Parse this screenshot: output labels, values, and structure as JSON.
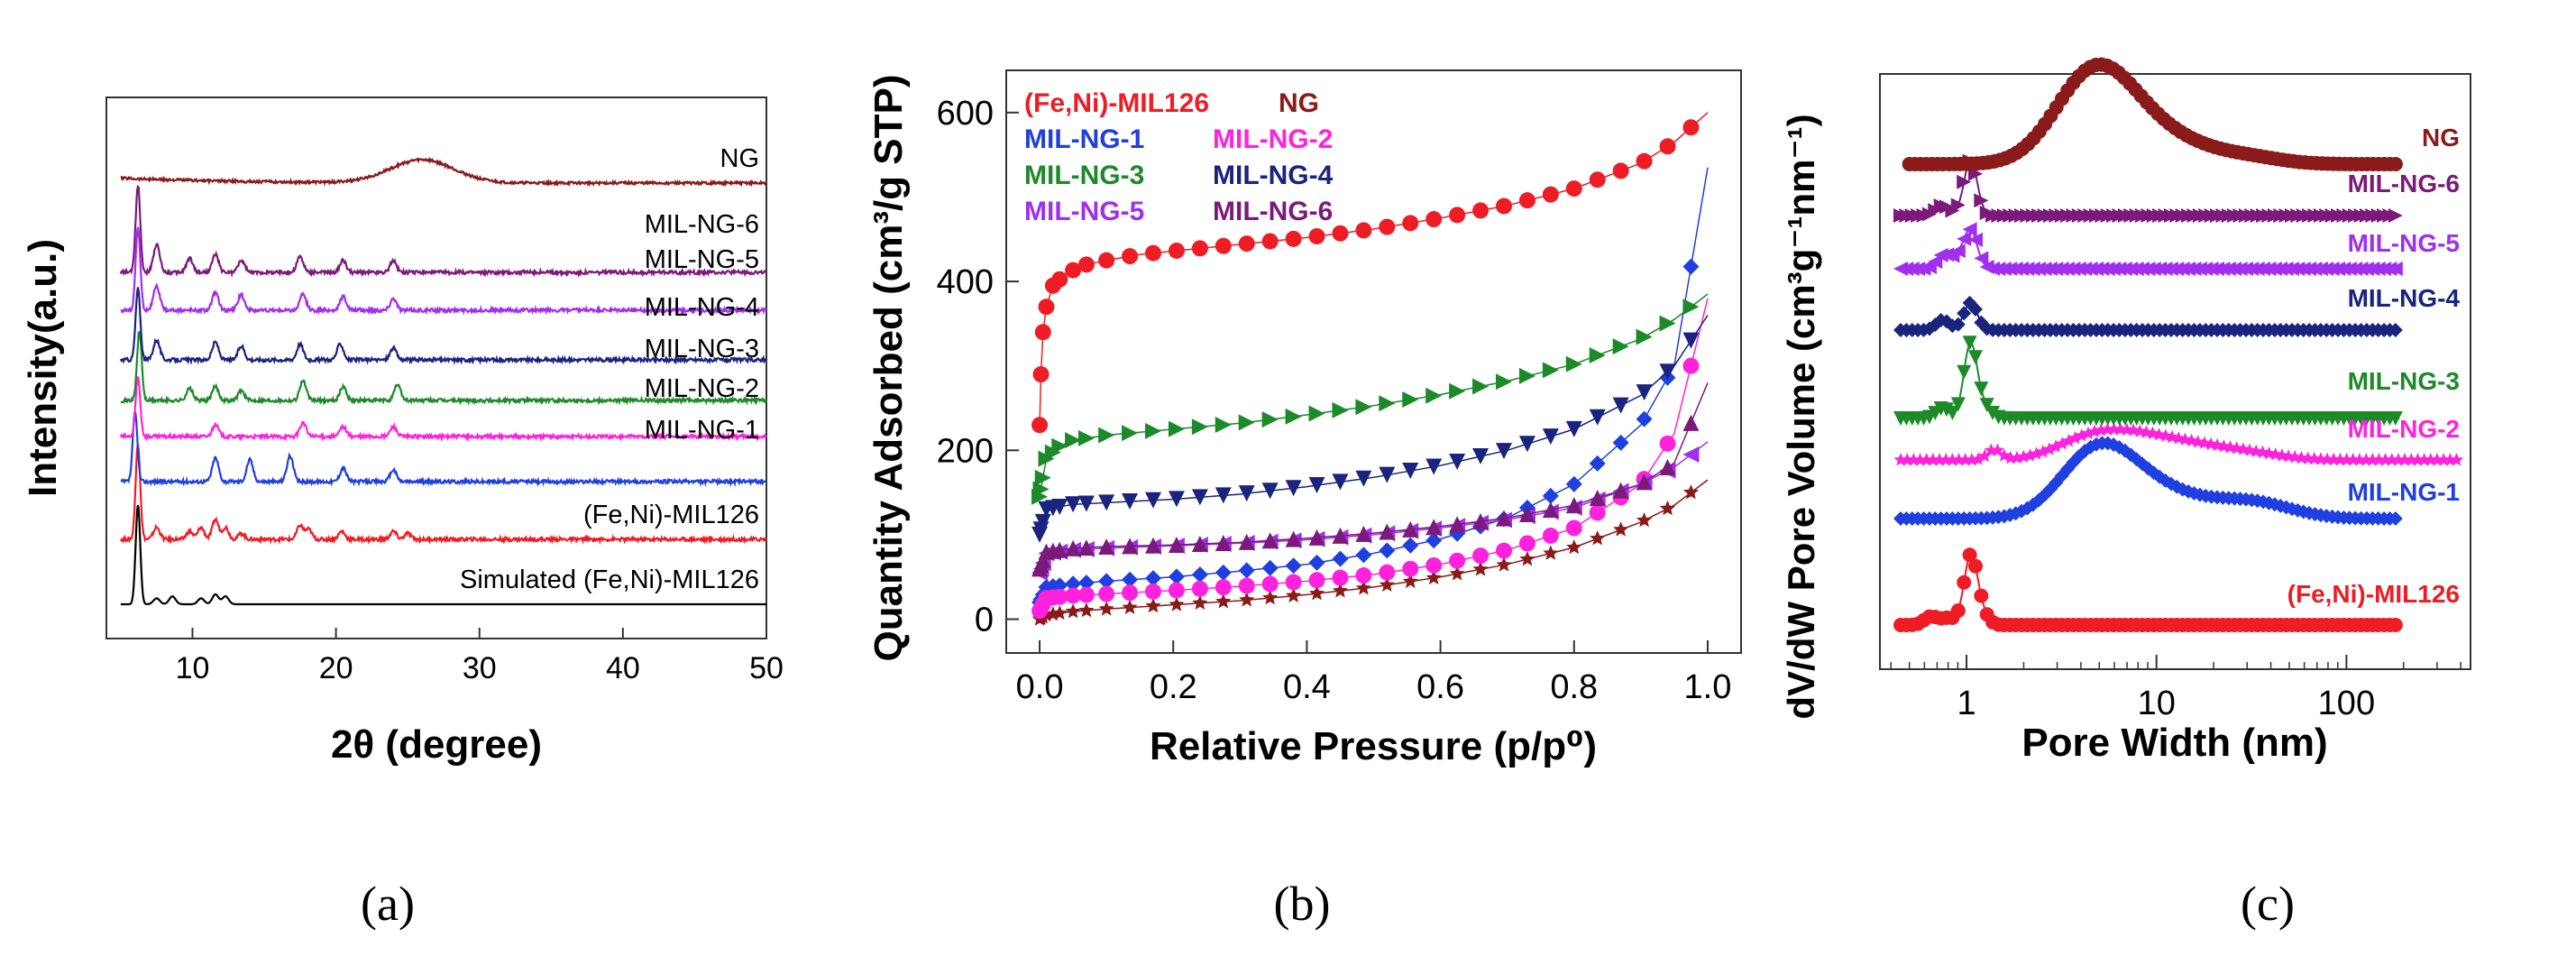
{
  "chart_data": [
    {
      "type": "line",
      "panel_label": "(a)",
      "xlabel": "2θ (degree)",
      "ylabel": "Intensity(a.u.)",
      "xlim": [
        4,
        50
      ],
      "xticks": [
        10,
        20,
        30,
        40,
        50
      ],
      "series": [
        {
          "name": "Simulated (Fe,Ni)-MIL126",
          "color": "#000000",
          "peaks": [
            [
              6.2,
              5.0
            ],
            [
              7.5,
              0.3
            ],
            [
              8.6,
              0.4
            ],
            [
              10.6,
              0.3
            ],
            [
              11.6,
              0.5
            ],
            [
              12.3,
              0.4
            ]
          ]
        },
        {
          "name": "(Fe,Ni)-MIL126",
          "color": "#ee1c25",
          "peaks": [
            [
              6.2,
              4.8
            ],
            [
              7.5,
              0.6
            ],
            [
              9.8,
              0.4
            ],
            [
              10.6,
              0.6
            ],
            [
              11.6,
              1.0
            ],
            [
              12.3,
              0.6
            ],
            [
              13.4,
              0.3
            ],
            [
              17.5,
              0.7
            ],
            [
              18.1,
              0.5
            ],
            [
              20.4,
              0.4
            ],
            [
              24.0,
              0.4
            ],
            [
              25.0,
              0.3
            ]
          ]
        },
        {
          "name": "MIL-NG-1",
          "color": "#1f3fe0",
          "peaks": [
            [
              6.0,
              3.5
            ],
            [
              11.6,
              1.2
            ],
            [
              14.0,
              1.1
            ],
            [
              16.8,
              1.3
            ],
            [
              20.5,
              0.7
            ],
            [
              24.0,
              0.6
            ]
          ]
        },
        {
          "name": "MIL-NG-2",
          "color": "#ff22dd",
          "peaks": [
            [
              6.2,
              3.0
            ],
            [
              11.6,
              0.6
            ],
            [
              17.7,
              0.7
            ],
            [
              20.5,
              0.5
            ],
            [
              24.0,
              0.5
            ]
          ]
        },
        {
          "name": "MIL-NG-3",
          "color": "#1d8a2a",
          "peaks": [
            [
              6.3,
              3.5
            ],
            [
              9.8,
              0.6
            ],
            [
              11.6,
              0.7
            ],
            [
              13.4,
              0.5
            ],
            [
              17.7,
              1.0
            ],
            [
              20.5,
              0.7
            ],
            [
              24.3,
              0.8
            ]
          ]
        },
        {
          "name": "MIL-NG-4",
          "color": "#1a237e",
          "peaks": [
            [
              6.2,
              3.6
            ],
            [
              7.5,
              1.0
            ],
            [
              11.6,
              0.9
            ],
            [
              13.4,
              0.7
            ],
            [
              17.5,
              0.8
            ],
            [
              20.3,
              0.8
            ],
            [
              24.0,
              0.6
            ]
          ]
        },
        {
          "name": "MIL-NG-5",
          "color": "#a030ee",
          "peaks": [
            [
              6.2,
              4.2
            ],
            [
              7.5,
              1.2
            ],
            [
              11.6,
              0.9
            ],
            [
              13.4,
              0.8
            ],
            [
              17.7,
              0.8
            ],
            [
              20.5,
              0.7
            ],
            [
              24.0,
              0.6
            ]
          ]
        },
        {
          "name": "MIL-NG-6",
          "color": "#7b1a7b",
          "peaks": [
            [
              6.2,
              4.4
            ],
            [
              7.5,
              1.4
            ],
            [
              9.8,
              0.7
            ],
            [
              11.6,
              0.9
            ],
            [
              13.4,
              0.6
            ],
            [
              17.5,
              0.8
            ],
            [
              20.5,
              0.6
            ],
            [
              24.0,
              0.6
            ]
          ]
        },
        {
          "name": "NG",
          "color": "#8b1a1a",
          "peaks": [
            [
              26.0,
              1.6
            ]
          ]
        }
      ]
    },
    {
      "type": "scatter",
      "panel_label": "(b)",
      "xlabel": "Relative Pressure (p/p⁰)",
      "ylabel": "Quantity Adsorbed (cm³/g STP)",
      "xlim": [
        -0.05,
        1.05
      ],
      "ylim": [
        -40,
        650
      ],
      "xticks": [
        0.0,
        0.2,
        0.4,
        0.6,
        0.8,
        1.0
      ],
      "xtick_labels": [
        "0.0",
        "0.2",
        "0.4",
        "0.6",
        "0.8",
        "1.0"
      ],
      "yticks": [
        0,
        200,
        400,
        600
      ],
      "legend": [
        {
          "label": "(Fe,Ni)-MIL126",
          "color": "#ee1c25"
        },
        {
          "label": "NG",
          "color": "#8b1a1a"
        },
        {
          "label": "MIL-NG-1",
          "color": "#1f3fe0"
        },
        {
          "label": "MIL-NG-2",
          "color": "#ff22dd"
        },
        {
          "label": "MIL-NG-3",
          "color": "#1d8a2a"
        },
        {
          "label": "MIL-NG-4",
          "color": "#1a237e"
        },
        {
          "label": "MIL-NG-5",
          "color": "#a030ee"
        },
        {
          "label": "MIL-NG-6",
          "color": "#7b1a7b"
        }
      ],
      "series": [
        {
          "name": "(Fe,Ni)-MIL126",
          "color": "#ee1c25",
          "marker": "circle",
          "x": [
            0.0,
            0.002,
            0.005,
            0.01,
            0.02,
            0.04,
            0.07,
            0.1,
            0.15,
            0.2,
            0.3,
            0.4,
            0.5,
            0.6,
            0.7,
            0.8,
            0.9,
            0.95,
            1.0
          ],
          "y": [
            230,
            290,
            340,
            370,
            395,
            410,
            420,
            425,
            432,
            436,
            444,
            452,
            462,
            475,
            490,
            510,
            540,
            565,
            600
          ]
        },
        {
          "name": "NG",
          "color": "#8b1a1a",
          "marker": "star",
          "x": [
            0.0,
            0.01,
            0.05,
            0.1,
            0.2,
            0.3,
            0.4,
            0.5,
            0.6,
            0.7,
            0.8,
            0.9,
            0.95,
            1.0
          ],
          "y": [
            0,
            5,
            9,
            12,
            17,
            22,
            29,
            38,
            50,
            65,
            85,
            115,
            135,
            165
          ]
        },
        {
          "name": "MIL-NG-1",
          "color": "#1f3fe0",
          "marker": "diamond",
          "x": [
            0.0,
            0.01,
            0.05,
            0.1,
            0.2,
            0.3,
            0.4,
            0.5,
            0.6,
            0.7,
            0.8,
            0.9,
            0.95,
            1.0
          ],
          "y": [
            20,
            38,
            42,
            45,
            50,
            57,
            65,
            78,
            95,
            120,
            160,
            230,
            300,
            535
          ]
        },
        {
          "name": "MIL-NG-2",
          "color": "#ff22dd",
          "marker": "circle",
          "x": [
            0.0,
            0.01,
            0.05,
            0.1,
            0.2,
            0.3,
            0.4,
            0.5,
            0.6,
            0.7,
            0.8,
            0.9,
            0.95,
            1.0
          ],
          "y": [
            10,
            25,
            28,
            30,
            34,
            39,
            45,
            53,
            65,
            82,
            108,
            160,
            220,
            380
          ]
        },
        {
          "name": "MIL-NG-3",
          "color": "#1d8a2a",
          "marker": "triangle-right",
          "x": [
            0.0,
            0.01,
            0.03,
            0.05,
            0.1,
            0.2,
            0.3,
            0.4,
            0.5,
            0.6,
            0.7,
            0.8,
            0.9,
            0.95,
            1.0
          ],
          "y": [
            145,
            190,
            205,
            212,
            218,
            225,
            232,
            242,
            253,
            266,
            282,
            302,
            332,
            355,
            385
          ]
        },
        {
          "name": "MIL-NG-4",
          "color": "#1a237e",
          "marker": "triangle-down",
          "x": [
            0.0,
            0.01,
            0.05,
            0.1,
            0.2,
            0.3,
            0.4,
            0.5,
            0.6,
            0.7,
            0.8,
            0.9,
            0.95,
            1.0
          ],
          "y": [
            100,
            130,
            136,
            138,
            142,
            148,
            157,
            168,
            182,
            200,
            225,
            265,
            300,
            360
          ]
        },
        {
          "name": "MIL-NG-5",
          "color": "#a030ee",
          "marker": "triangle-left",
          "x": [
            0.0,
            0.01,
            0.05,
            0.1,
            0.2,
            0.3,
            0.4,
            0.5,
            0.6,
            0.7,
            0.8,
            0.9,
            0.95,
            1.0
          ],
          "y": [
            55,
            78,
            82,
            84,
            87,
            90,
            94,
            100,
            108,
            118,
            132,
            160,
            180,
            210
          ]
        },
        {
          "name": "MIL-NG-6",
          "color": "#7b1a7b",
          "marker": "triangle-up",
          "x": [
            0.0,
            0.01,
            0.05,
            0.1,
            0.2,
            0.3,
            0.4,
            0.5,
            0.6,
            0.7,
            0.8,
            0.9,
            0.95,
            1.0
          ],
          "y": [
            60,
            80,
            84,
            86,
            88,
            91,
            96,
            102,
            110,
            120,
            135,
            160,
            185,
            280
          ]
        }
      ]
    },
    {
      "type": "line",
      "panel_label": "(c)",
      "xlabel": "Pore Width (nm)",
      "ylabel": "dV/dW Pore Volume (cm³g⁻¹nm⁻¹)",
      "xscale": "log",
      "xlim": [
        0.35,
        450
      ],
      "xticks": [
        1,
        10,
        100
      ],
      "xtick_labels": [
        "1",
        "10",
        "100"
      ],
      "series": [
        {
          "name": "(Fe,Ni)-MIL126",
          "color": "#ee1c25",
          "marker": "circle",
          "xmin": 0.45,
          "xmax": 190,
          "peaks": [
            [
              0.65,
              0.25
            ],
            [
              0.8,
              0.2
            ],
            [
              1.05,
              2.0
            ],
            [
              1.2,
              0.3
            ]
          ]
        },
        {
          "name": "MIL-NG-1",
          "color": "#1f3fe0",
          "marker": "diamond",
          "xmin": 0.45,
          "xmax": 190,
          "peaks": [
            [
              4.2,
              0.8
            ],
            [
              5.0,
              0.9
            ],
            [
              7.0,
              0.7
            ],
            [
              12.0,
              0.5
            ],
            [
              25.0,
              0.35
            ],
            [
              40.0,
              0.25
            ]
          ]
        },
        {
          "name": "MIL-NG-2",
          "color": "#ff22dd",
          "marker": "star",
          "xmin": 0.45,
          "xmax": 400,
          "peaks": [
            [
              1.4,
              0.3
            ],
            [
              4.5,
              0.6
            ],
            [
              8.0,
              0.5
            ],
            [
              15.0,
              0.35
            ],
            [
              30.0,
              0.2
            ]
          ]
        },
        {
          "name": "MIL-NG-3",
          "color": "#1d8a2a",
          "marker": "triangle-down",
          "xmin": 0.45,
          "xmax": 190,
          "peaks": [
            [
              0.75,
              0.3
            ],
            [
              1.05,
              2.2
            ],
            [
              1.25,
              0.3
            ]
          ]
        },
        {
          "name": "MIL-NG-4",
          "color": "#1a237e",
          "marker": "diamond",
          "xmin": 0.45,
          "xmax": 190,
          "peaks": [
            [
              0.75,
              0.3
            ],
            [
              1.05,
              0.8
            ]
          ]
        },
        {
          "name": "MIL-NG-5",
          "color": "#a030ee",
          "marker": "triangle-left",
          "xmin": 0.45,
          "xmax": 190,
          "peaks": [
            [
              0.75,
              0.4
            ],
            [
              0.9,
              0.3
            ],
            [
              1.05,
              1.1
            ]
          ]
        },
        {
          "name": "MIL-NG-6",
          "color": "#7b1a7b",
          "marker": "triangle-right",
          "xmin": 0.45,
          "xmax": 190,
          "peaks": [
            [
              0.75,
              0.3
            ],
            [
              1.05,
              1.6
            ]
          ]
        },
        {
          "name": "NG",
          "color": "#8b1a1a",
          "marker": "circle",
          "xmin": 0.5,
          "xmax": 190,
          "peaks": [
            [
              3.5,
              0.6
            ],
            [
              4.5,
              1.4
            ],
            [
              6.0,
              1.0
            ],
            [
              9.0,
              0.6
            ],
            [
              15.0,
              0.35
            ],
            [
              30.0,
              0.2
            ]
          ]
        }
      ]
    }
  ]
}
